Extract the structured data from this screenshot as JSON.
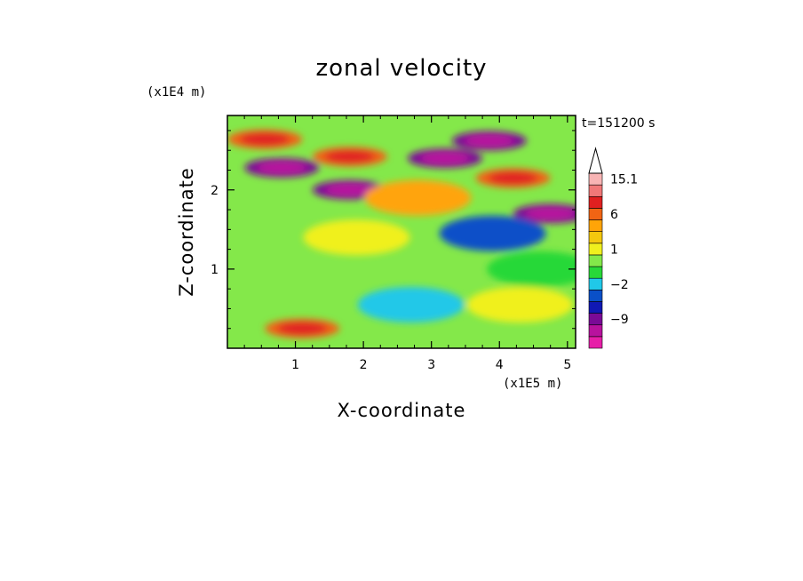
{
  "chart_data": {
    "type": "heatmap",
    "title": "zonal velocity",
    "xlabel": "X-coordinate",
    "ylabel": "Z-coordinate",
    "x_unit": "(x1E5 m)",
    "y_unit": "(x1E4 m)",
    "time_label": "t=151200 s",
    "xlim": [
      0,
      5.12
    ],
    "ylim": [
      0,
      2.94
    ],
    "x_ticks": [
      "1",
      "2",
      "3",
      "4",
      "5"
    ],
    "y_ticks": [
      "1",
      "2"
    ],
    "colorbar": {
      "levels": [
        -15,
        -12,
        -9,
        -6,
        -4,
        -2,
        -1,
        0,
        1,
        2,
        3,
        6,
        9,
        12,
        15.1
      ],
      "labels": [
        "15.1",
        "6",
        "1",
        "-2",
        "-9"
      ],
      "colors": [
        "#e61ea8",
        "#b8129e",
        "#7a0a96",
        "#1018b4",
        "#0a50c8",
        "#20c8e8",
        "#28d838",
        "#84e84a",
        "#f0f01e",
        "#f4c80e",
        "#ffa408",
        "#f06414",
        "#e02020",
        "#f07878",
        "#f8b4b4"
      ]
    },
    "features": [
      {
        "x": 0.55,
        "z": 2.64,
        "value": 6
      },
      {
        "x": 1.8,
        "z": 2.42,
        "value": 6
      },
      {
        "x": 3.85,
        "z": 2.62,
        "value": -9
      },
      {
        "x": 0.8,
        "z": 2.28,
        "value": -9
      },
      {
        "x": 1.8,
        "z": 2.0,
        "value": -9
      },
      {
        "x": 3.2,
        "z": 2.4,
        "value": -9
      },
      {
        "x": 4.2,
        "z": 2.15,
        "value": 6
      },
      {
        "x": 4.75,
        "z": 1.7,
        "value": -9
      },
      {
        "x": 3.9,
        "z": 1.45,
        "value": -4
      },
      {
        "x": 2.8,
        "z": 1.9,
        "value": 3
      },
      {
        "x": 1.9,
        "z": 1.4,
        "value": 1
      },
      {
        "x": 2.7,
        "z": 0.55,
        "value": -2
      },
      {
        "x": 1.1,
        "z": 0.25,
        "value": 6
      },
      {
        "x": 4.3,
        "z": 0.55,
        "value": 1
      },
      {
        "x": 4.6,
        "z": 1.0,
        "value": -1
      }
    ]
  }
}
